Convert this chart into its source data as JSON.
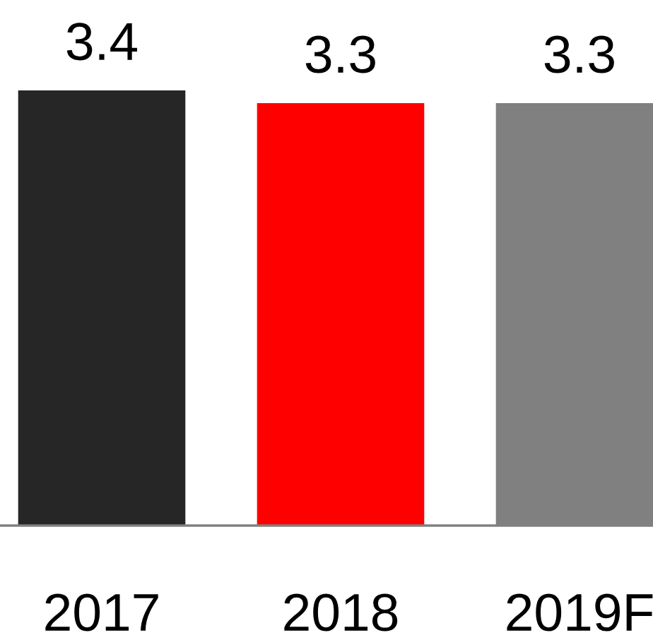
{
  "chart_data": {
    "type": "bar",
    "categories": [
      "2017",
      "2018",
      "2019F"
    ],
    "values": [
      3.4,
      3.3,
      3.3
    ],
    "colors": [
      "#262626",
      "#ff0000",
      "#808080"
    ],
    "data_labels": true,
    "grid": false,
    "legend": false
  }
}
